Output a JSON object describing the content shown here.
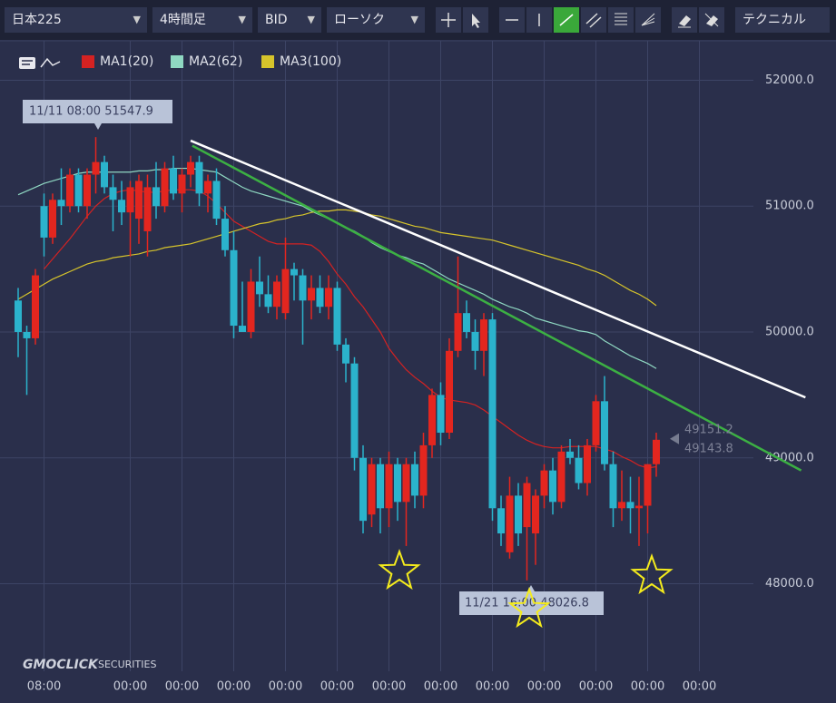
{
  "toolbar": {
    "symbol": "日本225",
    "interval": "4時間足",
    "price_type": "BID",
    "chart_style": "ローソク",
    "technical": "テクニカル"
  },
  "chart_data": {
    "type": "candlestick",
    "up_color": "#e3261f",
    "down_color": "#2bb3cc",
    "categories": [
      null,
      null,
      null,
      "08:00",
      null,
      null,
      null,
      null,
      null,
      null,
      null,
      null,
      null,
      "00:00",
      null,
      null,
      null,
      null,
      null,
      "00:00",
      null,
      null,
      null,
      null,
      null,
      "00:00",
      null,
      null,
      null,
      null,
      null,
      "00:00",
      null,
      null,
      null,
      null,
      null,
      "00:00",
      null,
      null,
      null,
      null,
      null,
      "00:00",
      null,
      null,
      null,
      null,
      null,
      "00:00",
      null,
      null,
      null,
      null,
      null,
      "00:00",
      null,
      null,
      null,
      null,
      null,
      "00:00",
      null,
      null,
      null,
      null,
      null,
      "00:00",
      null,
      null,
      null,
      null,
      null,
      "00:00",
      null,
      null,
      null,
      null,
      null,
      "00:00"
    ],
    "open": [
      50250,
      50000,
      49950,
      51000,
      50750,
      51050,
      51000,
      51250,
      51000,
      51250,
      51350,
      51150,
      51050,
      50950,
      50900,
      50800,
      51150,
      51000,
      51300,
      51100,
      51250,
      51350,
      51100,
      51200,
      50900,
      50650,
      50050,
      50000,
      50400,
      50300,
      50200,
      50150,
      50500,
      50450,
      50250,
      50350,
      50200,
      50350,
      49900,
      49750,
      49000,
      48550,
      48950,
      48600,
      48950,
      48650,
      48950,
      48700,
      49100,
      49500,
      49200,
      49850,
      50150,
      50000,
      49850,
      50100,
      48600,
      48250,
      48700,
      48450,
      48400,
      48700,
      48900,
      48650,
      49050,
      49000,
      48800,
      49100,
      49450,
      48950,
      48600,
      48650,
      48600,
      48620,
      48950,
      null,
      null,
      null,
      null,
      null
    ],
    "high": [
      50350,
      50050,
      50500,
      51100,
      51100,
      51300,
      51300,
      51300,
      51300,
      51547.9,
      51400,
      51250,
      51200,
      51200,
      51250,
      51250,
      51350,
      51350,
      51400,
      51300,
      51400,
      51400,
      51250,
      51300,
      51000,
      50800,
      50400,
      50500,
      50600,
      50450,
      50450,
      50750,
      50550,
      50500,
      50450,
      50450,
      50450,
      50400,
      49950,
      49800,
      49100,
      49000,
      49000,
      49050,
      49000,
      49000,
      49050,
      49200,
      49550,
      49600,
      49950,
      50600,
      50250,
      50100,
      50150,
      50150,
      48700,
      48850,
      48800,
      48850,
      48750,
      48950,
      49000,
      49100,
      49150,
      49100,
      49150,
      49500,
      49650,
      49050,
      48900,
      48850,
      48850,
      48950,
      49200,
      null,
      null,
      null,
      null,
      null
    ],
    "low": [
      49800,
      49500,
      49900,
      50600,
      50700,
      50850,
      50950,
      50950,
      50900,
      51100,
      51100,
      50800,
      50850,
      50600,
      50700,
      50600,
      50900,
      50950,
      51050,
      50950,
      51150,
      51000,
      50950,
      50850,
      50600,
      49950,
      50000,
      49950,
      50200,
      50150,
      50100,
      50100,
      50250,
      49900,
      50100,
      50150,
      50100,
      49850,
      49600,
      48900,
      48400,
      48450,
      48400,
      48450,
      48500,
      48300,
      48600,
      48600,
      49000,
      49100,
      49150,
      49800,
      49950,
      49700,
      49650,
      48500,
      48300,
      48200,
      48300,
      48026.8,
      48150,
      48600,
      48550,
      48600,
      48950,
      48750,
      48700,
      49050,
      48900,
      48450,
      48500,
      48400,
      48300,
      48400,
      48850,
      null,
      null,
      null,
      null,
      null
    ],
    "close": [
      50000,
      49950,
      50450,
      50750,
      51050,
      51000,
      51250,
      51000,
      51250,
      51350,
      51150,
      51050,
      50950,
      51150,
      51200,
      51150,
      51000,
      51300,
      51100,
      51250,
      51350,
      51100,
      51200,
      50900,
      50650,
      50050,
      50000,
      50400,
      50300,
      50200,
      50400,
      50500,
      50450,
      50250,
      50350,
      50200,
      50350,
      49900,
      49750,
      49000,
      48500,
      48950,
      48600,
      48950,
      48650,
      48950,
      48700,
      49100,
      49500,
      49200,
      49850,
      50150,
      50000,
      49850,
      50100,
      48600,
      48400,
      48700,
      48400,
      48800,
      48700,
      48900,
      48650,
      49050,
      49000,
      48800,
      49100,
      49450,
      48950,
      48600,
      48650,
      48600,
      48620,
      48950,
      49143.8,
      null,
      null,
      null,
      null,
      null
    ],
    "series": [
      {
        "name": "MA1(20)",
        "color": "#d42222",
        "values": [
          null,
          null,
          null,
          50500,
          50580,
          50660,
          50740,
          50830,
          50920,
          51000,
          51060,
          51100,
          51120,
          51130,
          51120,
          51110,
          51110,
          51120,
          51130,
          51130,
          51130,
          51120,
          51080,
          51020,
          50950,
          50880,
          50840,
          50800,
          50760,
          50720,
          50700,
          50700,
          50700,
          50700,
          50690,
          50640,
          50560,
          50460,
          50380,
          50280,
          50200,
          50100,
          50000,
          49870,
          49780,
          49700,
          49640,
          49590,
          49530,
          49480,
          49460,
          49450,
          49440,
          49420,
          49380,
          49330,
          49280,
          49230,
          49180,
          49140,
          49110,
          49090,
          49080,
          49080,
          49090,
          49090,
          49090,
          49090,
          49070,
          49050,
          49010,
          48980,
          48940,
          48920,
          48930,
          null,
          null,
          null,
          null,
          null
        ]
      },
      {
        "name": "MA2(62)",
        "color": "#8fd8c2",
        "values": [
          51090,
          51120,
          51150,
          51180,
          51200,
          51220,
          51240,
          51260,
          51270,
          51270,
          51270,
          51270,
          51270,
          51270,
          51280,
          51280,
          51290,
          51290,
          51300,
          51300,
          51300,
          51290,
          51280,
          51270,
          51230,
          51190,
          51150,
          51120,
          51100,
          51080,
          51060,
          51040,
          51020,
          51000,
          50960,
          50930,
          50900,
          50870,
          50830,
          50800,
          50760,
          50710,
          50670,
          50640,
          50610,
          50590,
          50560,
          50540,
          50500,
          50460,
          50420,
          50390,
          50360,
          50330,
          50300,
          50260,
          50230,
          50200,
          50180,
          50150,
          50110,
          50090,
          50070,
          50050,
          50030,
          50010,
          50000,
          49980,
          49930,
          49890,
          49850,
          49810,
          49780,
          49750,
          49710,
          null,
          null,
          null,
          null,
          null
        ]
      },
      {
        "name": "MA3(100)",
        "color": "#d6c42b",
        "values": [
          50260,
          50300,
          50340,
          50380,
          50420,
          50450,
          50480,
          50510,
          50540,
          50560,
          50570,
          50590,
          50600,
          50610,
          50620,
          50640,
          50650,
          50670,
          50680,
          50690,
          50700,
          50720,
          50740,
          50760,
          50780,
          50800,
          50820,
          50840,
          50860,
          50870,
          50890,
          50900,
          50920,
          50930,
          50950,
          50960,
          50960,
          50970,
          50970,
          50960,
          50950,
          50930,
          50920,
          50900,
          50880,
          50860,
          50840,
          50830,
          50810,
          50790,
          50780,
          50770,
          50760,
          50750,
          50740,
          50730,
          50710,
          50690,
          50670,
          50650,
          50630,
          50610,
          50590,
          50570,
          50550,
          50530,
          50500,
          50480,
          50450,
          50410,
          50370,
          50330,
          50300,
          50260,
          50210,
          null,
          null,
          null,
          null,
          null
        ]
      }
    ],
    "lines": [
      {
        "color": "#ffffff",
        "x": [
          20,
          91.3
        ],
        "values": [
          51520,
          49480
        ]
      },
      {
        "color": "#3cb043",
        "x": [
          20.2,
          90.8
        ],
        "values": [
          51480,
          48900
        ]
      }
    ],
    "ylim": [
      47305,
      52313
    ],
    "yticks": [
      {
        "value": 48000,
        "label": "48000.0"
      },
      {
        "value": 49000,
        "label": "49000.0"
      },
      {
        "value": 50000,
        "label": "50000.0"
      },
      {
        "value": 51000,
        "label": "51000.0"
      },
      {
        "value": 52000,
        "label": "52000.0"
      }
    ],
    "grid": true,
    "price_markers": [
      49151.2,
      49143.8
    ],
    "annotations": [
      "11/11 08:00 51547.9",
      "11/21 16:00 48026.8"
    ],
    "watermark": [
      "GMOCLICK",
      "SECURITIES"
    ]
  }
}
